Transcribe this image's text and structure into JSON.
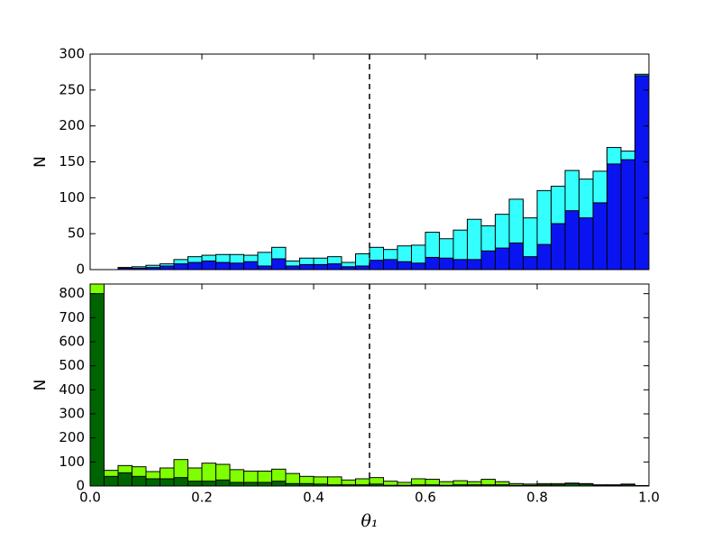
{
  "chart_data": [
    {
      "type": "histogram",
      "ylabel": "N",
      "bins": [
        0,
        0.025,
        0.05,
        0.075,
        0.1,
        0.125,
        0.15,
        0.175,
        0.2,
        0.225,
        0.25,
        0.275,
        0.3,
        0.325,
        0.35,
        0.375,
        0.4,
        0.425,
        0.45,
        0.475,
        0.5,
        0.525,
        0.55,
        0.575,
        0.6,
        0.625,
        0.65,
        0.675,
        0.7,
        0.725,
        0.75,
        0.775,
        0.8,
        0.825,
        0.85,
        0.875,
        0.9,
        0.925,
        0.95,
        0.975,
        1
      ],
      "series": [
        {
          "color": "#33ffff",
          "values": [
            0,
            0,
            3,
            4,
            6,
            8,
            14,
            18,
            20,
            21,
            21,
            20,
            24,
            31,
            12,
            16,
            16,
            18,
            10,
            22,
            31,
            28,
            33,
            34,
            52,
            43,
            55,
            70,
            61,
            77,
            98,
            72,
            110,
            116,
            138,
            126,
            137,
            170,
            165,
            272
          ]
        },
        {
          "color": "#0a14f0",
          "values": [
            0,
            0,
            2,
            2,
            3,
            5,
            8,
            10,
            12,
            10,
            9,
            11,
            5,
            15,
            5,
            7,
            7,
            8,
            4,
            5,
            13,
            14,
            11,
            9,
            17,
            16,
            14,
            14,
            26,
            30,
            37,
            18,
            35,
            64,
            82,
            72,
            93,
            147,
            153,
            270
          ]
        }
      ],
      "xlim": [
        0,
        1
      ],
      "ylim": [
        0,
        300
      ],
      "yticks": [
        0,
        50,
        100,
        150,
        200,
        250,
        300
      ],
      "vline": 0.5
    },
    {
      "type": "histogram",
      "ylabel": "N",
      "xlabel": "θ₁",
      "bins": [
        0,
        0.025,
        0.05,
        0.075,
        0.1,
        0.125,
        0.15,
        0.175,
        0.2,
        0.225,
        0.25,
        0.275,
        0.3,
        0.325,
        0.35,
        0.375,
        0.4,
        0.425,
        0.45,
        0.475,
        0.5,
        0.525,
        0.55,
        0.575,
        0.6,
        0.625,
        0.65,
        0.675,
        0.7,
        0.725,
        0.75,
        0.775,
        0.8,
        0.825,
        0.85,
        0.875,
        0.9,
        0.925,
        0.95,
        0.975,
        1
      ],
      "series": [
        {
          "color": "#7fff00",
          "values": [
            840,
            65,
            85,
            80,
            60,
            75,
            110,
            75,
            95,
            90,
            68,
            62,
            62,
            70,
            52,
            40,
            38,
            38,
            25,
            30,
            35,
            20,
            15,
            30,
            28,
            18,
            22,
            18,
            28,
            18,
            10,
            8,
            10,
            10,
            12,
            10,
            5,
            5,
            8,
            2
          ]
        },
        {
          "color": "#006400",
          "values": [
            800,
            40,
            55,
            40,
            30,
            30,
            35,
            20,
            20,
            25,
            15,
            15,
            15,
            20,
            10,
            10,
            8,
            5,
            5,
            5,
            8,
            3,
            3,
            5,
            5,
            3,
            5,
            5,
            5,
            5,
            3,
            3,
            5,
            5,
            10,
            8,
            3,
            3,
            5,
            1
          ]
        }
      ],
      "xlim": [
        0,
        1
      ],
      "ylim": [
        0,
        840
      ],
      "xticks": [
        {
          "value": 0,
          "label": "0.0"
        },
        {
          "value": 0.2,
          "label": "0.2"
        },
        {
          "value": 0.4,
          "label": "0.4"
        },
        {
          "value": 0.6,
          "label": "0.6"
        },
        {
          "value": 0.8,
          "label": "0.8"
        },
        {
          "value": 1,
          "label": "1.0"
        }
      ],
      "yticks": [
        0,
        100,
        200,
        300,
        400,
        500,
        600,
        700,
        800
      ],
      "vline": 0.5
    }
  ]
}
